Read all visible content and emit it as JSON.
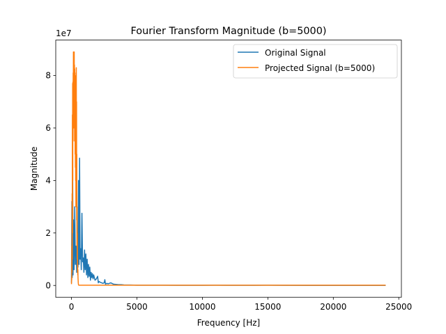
{
  "chart_data": {
    "type": "line",
    "title": "Fourier Transform Magnitude (b=5000)",
    "xlabel": "Frequency [Hz]",
    "ylabel": "Magnitude",
    "y_offset_label": "1e7",
    "xlim": [
      -1200,
      25200
    ],
    "ylim": [
      -0.45,
      9.35
    ],
    "y_unit_multiplier": 10000000,
    "grid": false,
    "legend_position": "top-right",
    "x_ticks": [
      {
        "value": 0,
        "label": "0"
      },
      {
        "value": 5000,
        "label": "5000"
      },
      {
        "value": 10000,
        "label": "10000"
      },
      {
        "value": 15000,
        "label": "15000"
      },
      {
        "value": 20000,
        "label": "20000"
      },
      {
        "value": 25000,
        "label": "25000"
      }
    ],
    "y_ticks": [
      {
        "value": 0,
        "label": "0"
      },
      {
        "value": 2,
        "label": "2"
      },
      {
        "value": 4,
        "label": "4"
      },
      {
        "value": 6,
        "label": "6"
      },
      {
        "value": 8,
        "label": "8"
      }
    ],
    "series": [
      {
        "name": "Original Signal",
        "color": "#1f77b4",
        "x": [
          0,
          30,
          60,
          90,
          120,
          150,
          200,
          250,
          300,
          350,
          400,
          450,
          500,
          540,
          580,
          620,
          660,
          700,
          750,
          800,
          850,
          900,
          950,
          1000,
          1050,
          1100,
          1150,
          1200,
          1250,
          1300,
          1350,
          1400,
          1450,
          1500,
          1550,
          1600,
          1650,
          1700,
          1800,
          1900,
          2000,
          2050,
          2100,
          2200,
          2300,
          2400,
          2500,
          2550,
          2600,
          2700,
          2800,
          3000,
          3200,
          3400,
          3600,
          3800,
          4000,
          4500,
          5000,
          6000,
          7000,
          8000,
          9000,
          10000,
          11000,
          12000,
          13000,
          14000,
          15000,
          16000,
          18000,
          20000,
          22000,
          24000
        ],
        "y": [
          0.1,
          3.2,
          0.3,
          4.85,
          0.4,
          2.5,
          0.6,
          3.0,
          0.8,
          1.5,
          0.5,
          2.0,
          0.7,
          4.0,
          0.8,
          4.85,
          1.0,
          1.4,
          0.6,
          2.75,
          0.9,
          1.05,
          0.5,
          1.35,
          0.6,
          1.2,
          0.4,
          1.0,
          0.3,
          0.8,
          0.35,
          0.7,
          0.2,
          0.5,
          0.3,
          0.45,
          0.25,
          0.4,
          0.2,
          0.25,
          0.35,
          0.1,
          0.15,
          0.12,
          0.1,
          0.08,
          0.1,
          0.22,
          0.05,
          0.08,
          0.06,
          0.1,
          0.05,
          0.04,
          0.03,
          0.03,
          0.02,
          0.015,
          0.01,
          0.01,
          0.01,
          0.005,
          0.005,
          0.005,
          0.01,
          0.005,
          0.005,
          0.005,
          0.01,
          0.005,
          0.004,
          0.003,
          0.002,
          0.002
        ]
      },
      {
        "name": "Projected Signal (b=5000)",
        "color": "#ff7f0e",
        "x": [
          0,
          10,
          20,
          30,
          40,
          50,
          60,
          70,
          80,
          90,
          100,
          110,
          120,
          130,
          140,
          150,
          160,
          170,
          180,
          190,
          200,
          210,
          220,
          230,
          240,
          250,
          260,
          270,
          280,
          290,
          300,
          310,
          320,
          330,
          340,
          350,
          360,
          370,
          380,
          390,
          400,
          410,
          420,
          430,
          440,
          450,
          460,
          470,
          480,
          490,
          500,
          510,
          520,
          530,
          540,
          560,
          600,
          800,
          1000,
          2000,
          5000,
          10000,
          15000,
          20000,
          24000
        ],
        "y": [
          0.05,
          0.3,
          0.2,
          1.5,
          0.5,
          3.5,
          1.0,
          6.5,
          2.0,
          7.7,
          4.0,
          7.75,
          5.5,
          8.1,
          7.0,
          8.9,
          6.0,
          8.2,
          6.5,
          8.2,
          7.0,
          8.9,
          6.0,
          8.4,
          5.5,
          8.25,
          6.0,
          8.0,
          5.0,
          7.6,
          4.5,
          6.5,
          4.0,
          7.5,
          3.0,
          8.1,
          5.0,
          8.3,
          3.5,
          7.0,
          2.5,
          5.0,
          1.5,
          3.0,
          1.0,
          2.0,
          0.5,
          1.0,
          0.4,
          0.6,
          0.3,
          0.2,
          0.1,
          0.05,
          0.02,
          0.01,
          0.01,
          0.01,
          0.01,
          0.01,
          0.01,
          0.01,
          0.01,
          0.01,
          0.01
        ]
      }
    ]
  }
}
